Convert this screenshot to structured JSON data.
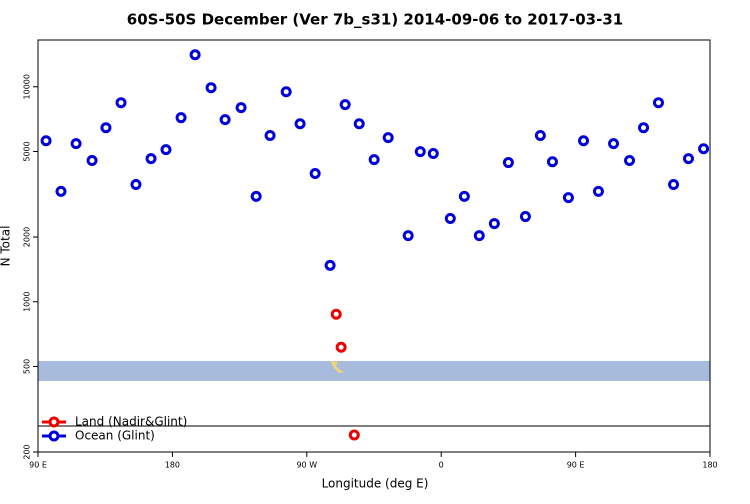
{
  "chart_data": {
    "type": "scatter",
    "title": "60S-50S December (Ver 7b_s31)   2014-09-06 to 2017-03-31",
    "x_label": "Longitude (deg E)",
    "y_label": "N Total",
    "y_scale": "log",
    "legend": "bottomleft",
    "xlim": [
      90,
      540
    ],
    "xticks": [
      {
        "value": 90,
        "label": "90 E"
      },
      180,
      {
        "value": 270,
        "label": "90 W"
      },
      {
        "value": 360,
        "label": "0"
      },
      {
        "value": 450,
        "label": "90 E"
      },
      {
        "value": 540,
        "label": "180"
      }
    ],
    "ylim": [
      200,
      16500
    ],
    "yticks": [
      200,
      500,
      1000,
      2000,
      5000,
      10000
    ],
    "series": [
      {
        "name": "Land (Nadir&Glint)",
        "color": "#ee0000",
        "x": [
          289.7,
          293.0,
          301.8
        ],
        "values": [
          875,
          614,
          240
        ]
      },
      {
        "name": "Ocean (Glint)",
        "color": "#0000dd",
        "x": [
          95.4,
          105.4,
          115.5,
          126.2,
          135.5,
          145.6,
          155.6,
          165.7,
          175.7,
          185.8,
          195.2,
          205.9,
          215.3,
          226.0,
          236.1,
          245.4,
          256.2,
          265.5,
          275.6,
          285.6,
          295.7,
          305.1,
          315.1,
          324.5,
          337.9,
          346.0,
          354.7,
          366.1,
          375.5,
          385.5,
          395.6,
          405.0,
          416.4,
          426.4,
          434.5,
          445.2,
          455.3,
          465.3,
          475.4,
          486.1,
          495.5,
          505.5,
          515.6,
          525.6,
          535.7
        ],
        "values": [
          5610,
          3260,
          5440,
          4540,
          6450,
          8430,
          3510,
          4630,
          5100,
          7180,
          14090,
          9900,
          7030,
          8000,
          3090,
          5930,
          9480,
          6730,
          3950,
          1476,
          8260,
          6730,
          4580,
          5800,
          2030,
          4990,
          4890,
          2440,
          3090,
          2030,
          2310,
          4440,
          2490,
          5930,
          4480,
          3050,
          5610,
          3260,
          5440,
          4540,
          6450,
          8430,
          3510,
          4630,
          5150
        ]
      }
    ]
  }
}
